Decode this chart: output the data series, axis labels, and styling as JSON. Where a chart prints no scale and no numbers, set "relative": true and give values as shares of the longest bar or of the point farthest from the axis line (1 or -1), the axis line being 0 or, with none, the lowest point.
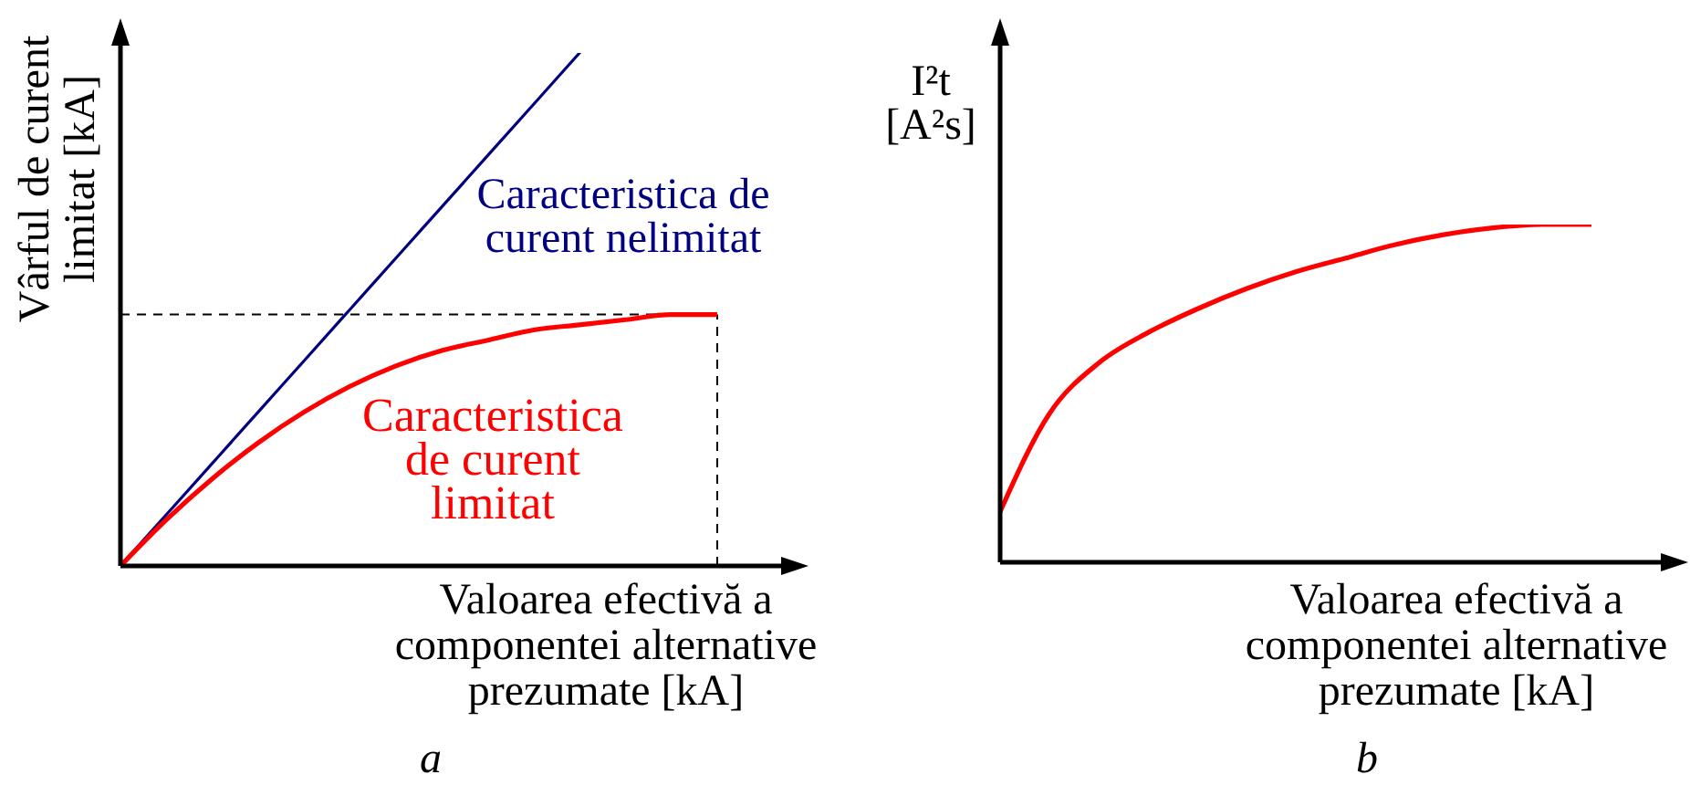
{
  "chart_data": [
    {
      "type": "line",
      "relative": true,
      "title": "a",
      "xlabel": "Valoarea efectivă a componentei alternative prezumate [kA]",
      "ylabel": "Vârful de curent limitat [kA]",
      "categories": [
        null,
        null,
        null,
        null,
        null,
        null,
        null,
        null,
        null,
        null,
        null,
        null,
        null,
        null
      ],
      "series": [
        {
          "name": "Caracteristica de curent nelimitat",
          "color": "#000080",
          "values": [
            0,
            0.1,
            0.2,
            0.3,
            0.4,
            0.5,
            0.6,
            0.7,
            0.8,
            0.9,
            1,
            null,
            null,
            null
          ]
        },
        {
          "name": "Caracteristica de curent limitat",
          "color": "#ff0000",
          "values": [
            0,
            0.09,
            0.17,
            0.24,
            0.3,
            0.35,
            0.39,
            0.42,
            0.44,
            0.46,
            0.47,
            0.48,
            0.49,
            0.49
          ]
        }
      ],
      "ref_lines": [
        {
          "axis": "y",
          "value": 0.49,
          "color": "#000000",
          "line_style": "dashed"
        }
      ],
      "grid": false,
      "legend": false,
      "marker": "none",
      "line_style": "solid"
    },
    {
      "type": "line",
      "relative": true,
      "title": "b",
      "xlabel": "Valoarea efectivă a componentei alternative prezumate [kA]",
      "ylabel": "I²t [A²s]",
      "categories": [
        null,
        null,
        null,
        null,
        null,
        null,
        null,
        null,
        null,
        null,
        null,
        null,
        null
      ],
      "series": [
        {
          "color": "#ff0000",
          "values": [
            0.15,
            0.44,
            0.59,
            0.68,
            0.75,
            0.81,
            0.86,
            0.9,
            0.94,
            0.97,
            0.99,
            1,
            1
          ]
        }
      ],
      "grid": false,
      "legend": false,
      "marker": "none",
      "line_style": "solid"
    }
  ]
}
